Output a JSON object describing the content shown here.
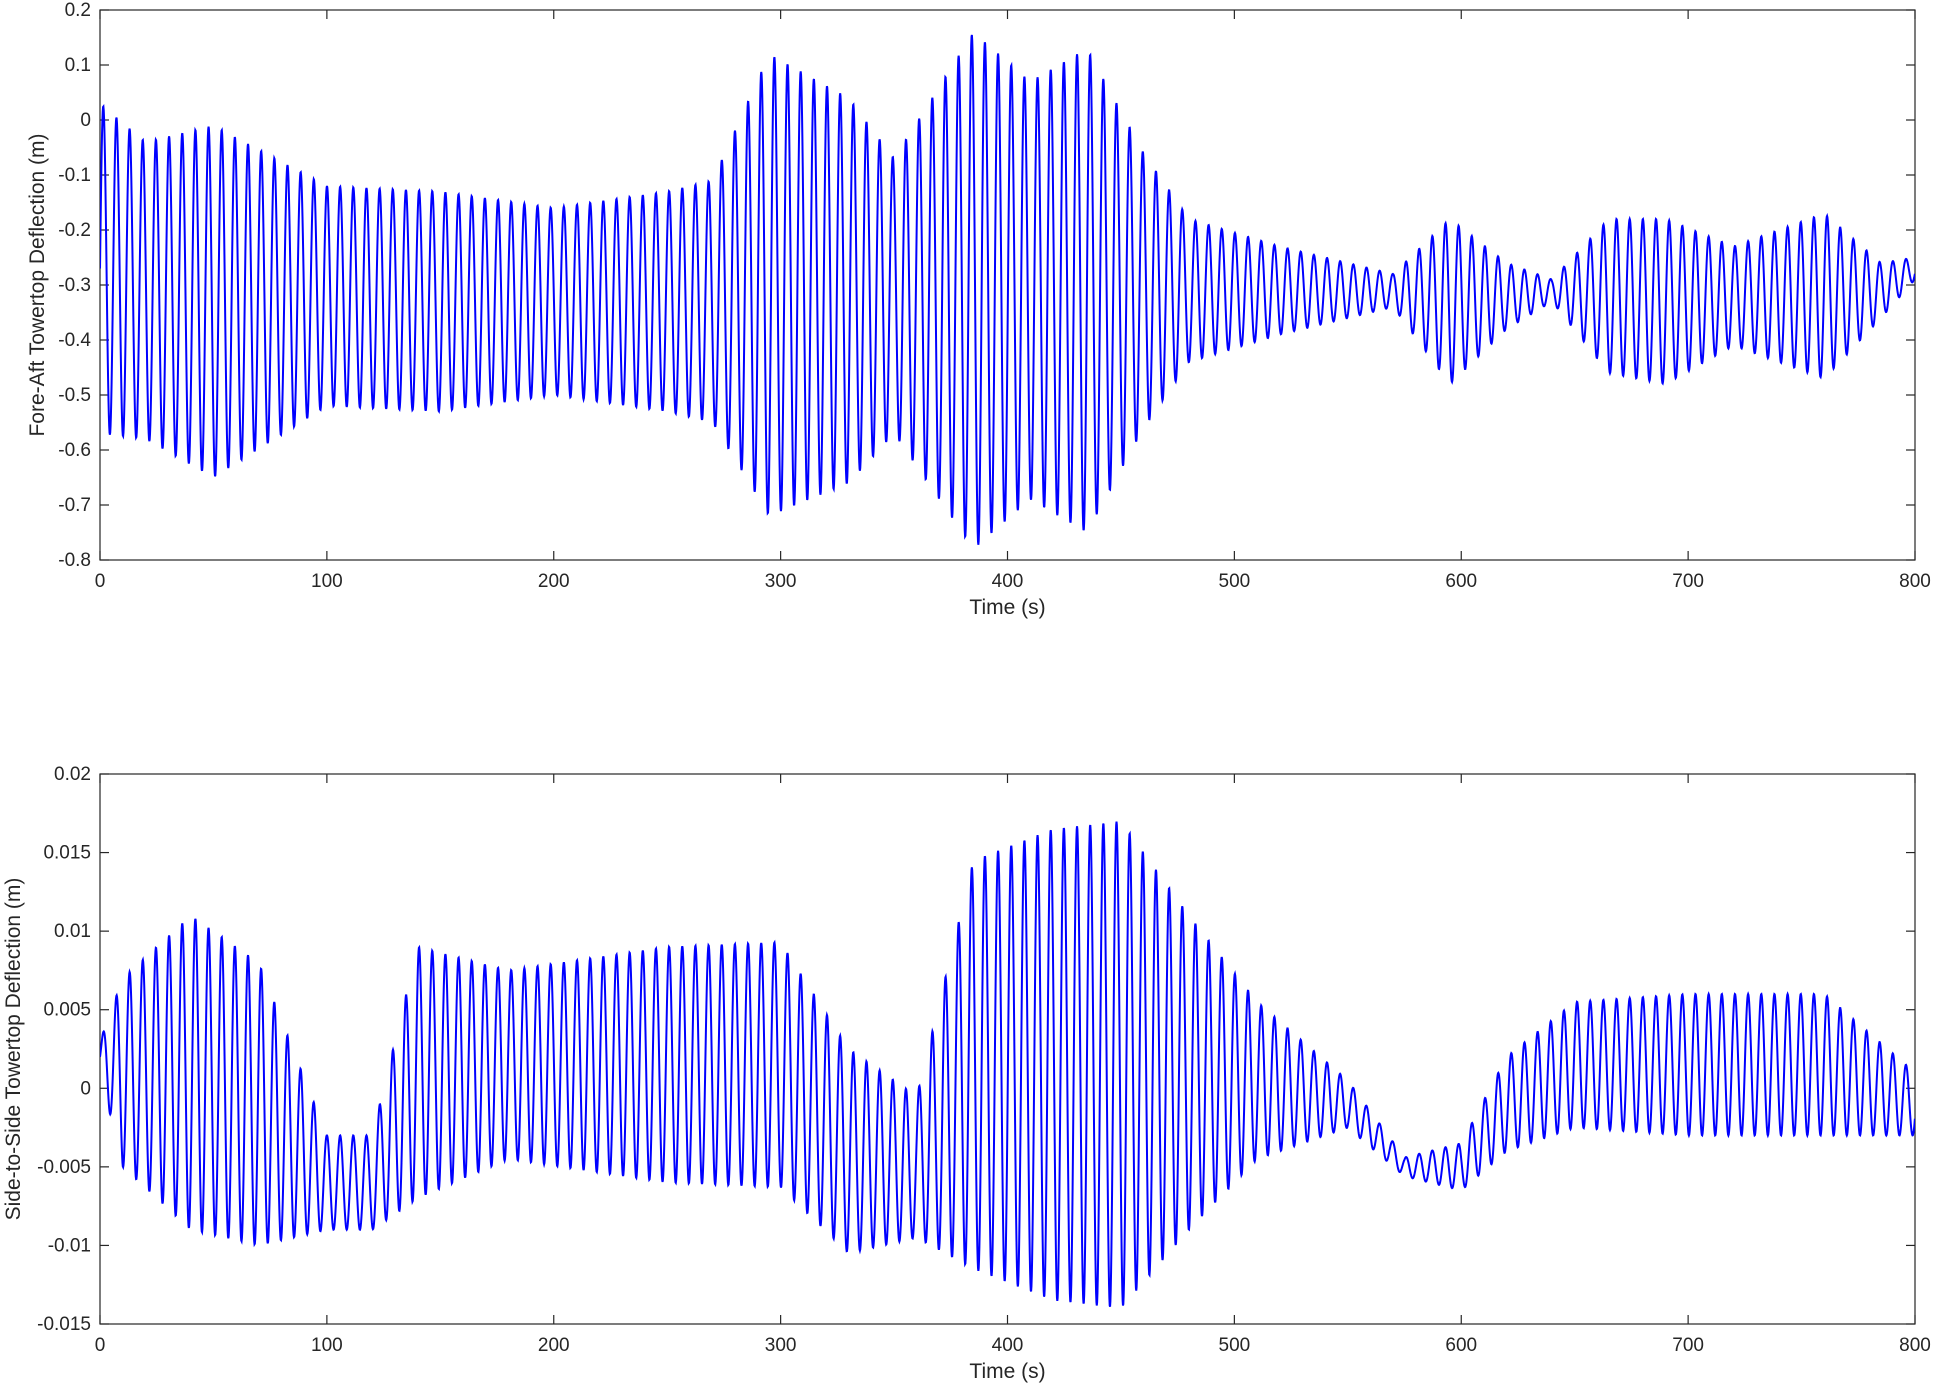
{
  "chart_data": [
    {
      "type": "line",
      "xlabel": "Time (s)",
      "ylabel": "Fore-Aft Towertop Deflection (m)",
      "xlim": [
        0,
        800
      ],
      "ylim": [
        -0.8,
        0.2
      ],
      "xticks": [
        "0",
        "100",
        "200",
        "300",
        "400",
        "500",
        "600",
        "700",
        "800"
      ],
      "yticks": [
        "-0.8",
        "-0.7",
        "-0.6",
        "-0.5",
        "-0.4",
        "-0.3",
        "-0.2",
        "-0.1",
        "0",
        "0.1",
        "0.2"
      ],
      "grid": false,
      "line_color": "#0000ff",
      "series": [
        {
          "signal": "oscillation",
          "period_s": 5.8,
          "envelope": [
            {
              "t": 0,
              "mean": -0.27,
              "amp": 0.3
            },
            {
              "t": 20,
              "mean": -0.31,
              "amp": 0.27
            },
            {
              "t": 50,
              "mean": -0.33,
              "amp": 0.32
            },
            {
              "t": 100,
              "mean": -0.32,
              "amp": 0.2
            },
            {
              "t": 150,
              "mean": -0.33,
              "amp": 0.2
            },
            {
              "t": 200,
              "mean": -0.33,
              "amp": 0.17
            },
            {
              "t": 250,
              "mean": -0.33,
              "amp": 0.2
            },
            {
              "t": 270,
              "mean": -0.33,
              "amp": 0.22
            },
            {
              "t": 295,
              "mean": -0.3,
              "amp": 0.42
            },
            {
              "t": 330,
              "mean": -0.31,
              "amp": 0.35
            },
            {
              "t": 350,
              "mean": -0.32,
              "amp": 0.25
            },
            {
              "t": 385,
              "mean": -0.31,
              "amp": 0.47
            },
            {
              "t": 410,
              "mean": -0.31,
              "amp": 0.38
            },
            {
              "t": 435,
              "mean": -0.31,
              "amp": 0.44
            },
            {
              "t": 460,
              "mean": -0.31,
              "amp": 0.25
            },
            {
              "t": 480,
              "mean": -0.31,
              "amp": 0.13
            },
            {
              "t": 520,
              "mean": -0.31,
              "amp": 0.08
            },
            {
              "t": 550,
              "mean": -0.31,
              "amp": 0.05
            },
            {
              "t": 570,
              "mean": -0.31,
              "amp": 0.03
            },
            {
              "t": 595,
              "mean": -0.33,
              "amp": 0.15
            },
            {
              "t": 620,
              "mean": -0.32,
              "amp": 0.06
            },
            {
              "t": 640,
              "mean": -0.31,
              "amp": 0.02
            },
            {
              "t": 665,
              "mean": -0.32,
              "amp": 0.14
            },
            {
              "t": 690,
              "mean": -0.33,
              "amp": 0.15
            },
            {
              "t": 720,
              "mean": -0.32,
              "amp": 0.09
            },
            {
              "t": 760,
              "mean": -0.32,
              "amp": 0.15
            },
            {
              "t": 785,
              "mean": -0.31,
              "amp": 0.05
            },
            {
              "t": 800,
              "mean": -0.27,
              "amp": 0.02
            }
          ]
        }
      ]
    },
    {
      "type": "line",
      "xlabel": "Time (s)",
      "ylabel": "Side-to-Side Towertop Deflection (m)",
      "xlim": [
        0,
        800
      ],
      "ylim": [
        -0.015,
        0.02
      ],
      "xticks": [
        "0",
        "100",
        "200",
        "300",
        "400",
        "500",
        "600",
        "700",
        "800"
      ],
      "yticks": [
        "-0.015",
        "-0.01",
        "-0.005",
        "0",
        "0.005",
        "0.01",
        "0.015",
        "0.02"
      ],
      "grid": false,
      "line_color": "#0000ff",
      "series": [
        {
          "signal": "oscillation",
          "period_s": 5.8,
          "envelope": [
            {
              "t": 0,
              "mean": 0.002,
              "amp": 0.001
            },
            {
              "t": 10,
              "mean": 0.001,
              "amp": 0.006
            },
            {
              "t": 40,
              "mean": 0.001,
              "amp": 0.01
            },
            {
              "t": 70,
              "mean": -0.001,
              "amp": 0.009
            },
            {
              "t": 100,
              "mean": -0.006,
              "amp": 0.003
            },
            {
              "t": 120,
              "mean": -0.006,
              "amp": 0.003
            },
            {
              "t": 140,
              "mean": 0.001,
              "amp": 0.008
            },
            {
              "t": 180,
              "mean": 0.0015,
              "amp": 0.006
            },
            {
              "t": 250,
              "mean": 0.0015,
              "amp": 0.0075
            },
            {
              "t": 300,
              "mean": 0.0015,
              "amp": 0.0078
            },
            {
              "t": 330,
              "mean": -0.004,
              "amp": 0.0065
            },
            {
              "t": 360,
              "mean": -0.005,
              "amp": 0.0045
            },
            {
              "t": 385,
              "mean": 0.0015,
              "amp": 0.013
            },
            {
              "t": 420,
              "mean": 0.0015,
              "amp": 0.015
            },
            {
              "t": 450,
              "mean": 0.0015,
              "amp": 0.0155
            },
            {
              "t": 480,
              "mean": 0.001,
              "amp": 0.01
            },
            {
              "t": 510,
              "mean": 0.0005,
              "amp": 0.005
            },
            {
              "t": 550,
              "mean": -0.001,
              "amp": 0.0015
            },
            {
              "t": 575,
              "mean": -0.005,
              "amp": 0.0006
            },
            {
              "t": 600,
              "mean": -0.005,
              "amp": 0.0015
            },
            {
              "t": 620,
              "mean": -0.001,
              "amp": 0.003
            },
            {
              "t": 650,
              "mean": 0.0015,
              "amp": 0.004
            },
            {
              "t": 700,
              "mean": 0.0015,
              "amp": 0.0045
            },
            {
              "t": 760,
              "mean": 0.0015,
              "amp": 0.0045
            },
            {
              "t": 800,
              "mean": -0.001,
              "amp": 0.002
            }
          ]
        }
      ]
    }
  ]
}
